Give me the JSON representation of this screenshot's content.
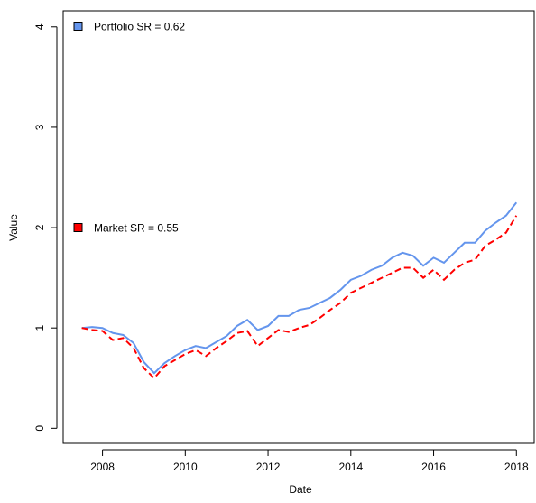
{
  "chart_data": {
    "type": "line",
    "x_label": "Date",
    "y_label": "Value",
    "x": [
      2007.5,
      2007.75,
      2008.0,
      2008.25,
      2008.5,
      2008.75,
      2009.0,
      2009.25,
      2009.5,
      2009.75,
      2010.0,
      2010.25,
      2010.5,
      2010.75,
      2011.0,
      2011.25,
      2011.5,
      2011.75,
      2012.0,
      2012.25,
      2012.5,
      2012.75,
      2013.0,
      2013.25,
      2013.5,
      2013.75,
      2014.0,
      2014.25,
      2014.5,
      2014.75,
      2015.0,
      2015.25,
      2015.5,
      2015.75,
      2016.0,
      2016.25,
      2016.5,
      2016.75,
      2017.0,
      2017.25,
      2017.5,
      2017.75,
      2018.0
    ],
    "series": [
      {
        "name": "Portfolio SR = 0.62",
        "color": "#6495ed",
        "dash": false,
        "values": [
          1.0,
          1.01,
          1.0,
          0.95,
          0.93,
          0.85,
          0.66,
          0.55,
          0.65,
          0.72,
          0.78,
          0.82,
          0.8,
          0.86,
          0.92,
          1.02,
          1.08,
          0.98,
          1.02,
          1.12,
          1.12,
          1.18,
          1.2,
          1.25,
          1.3,
          1.38,
          1.48,
          1.52,
          1.58,
          1.62,
          1.7,
          1.75,
          1.72,
          1.62,
          1.7,
          1.65,
          1.75,
          1.85,
          1.85,
          1.97,
          2.05,
          2.12,
          2.25
        ]
      },
      {
        "name": "Market SR = 0.55",
        "color": "#ff0000",
        "dash": true,
        "values": [
          1.0,
          0.98,
          0.97,
          0.88,
          0.9,
          0.8,
          0.6,
          0.5,
          0.62,
          0.68,
          0.74,
          0.78,
          0.72,
          0.8,
          0.87,
          0.95,
          0.97,
          0.82,
          0.9,
          0.98,
          0.96,
          1.0,
          1.03,
          1.1,
          1.18,
          1.25,
          1.35,
          1.4,
          1.45,
          1.5,
          1.55,
          1.6,
          1.6,
          1.5,
          1.58,
          1.48,
          1.58,
          1.65,
          1.68,
          1.82,
          1.88,
          1.95,
          2.12
        ]
      }
    ],
    "xlim": [
      2007.05,
      2018.43
    ],
    "xticks": [
      2008,
      2010,
      2012,
      2014,
      2016,
      2018
    ],
    "ylim": [
      -0.15,
      4.16
    ],
    "yticks": [
      0,
      1,
      2,
      3,
      4
    ]
  }
}
